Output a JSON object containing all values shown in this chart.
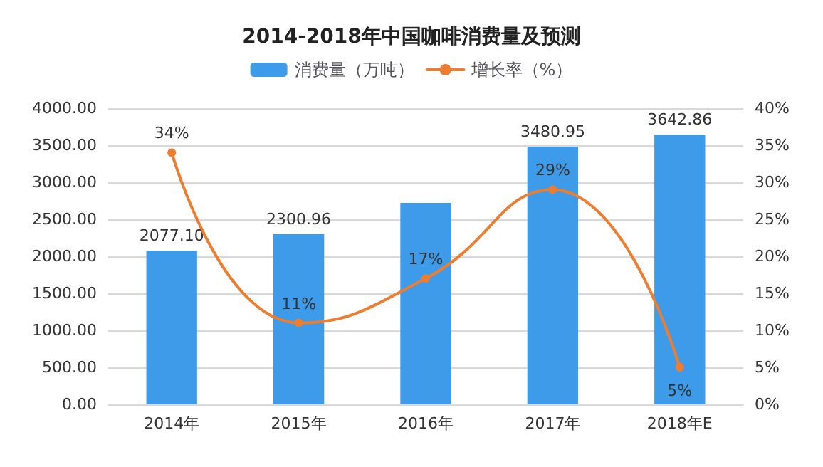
{
  "chart_data": {
    "type": "bar",
    "title": "2014-2018年中国咖啡消费量及预测",
    "categories": [
      "2014年",
      "2015年",
      "2016年",
      "2017年",
      "2018年E"
    ],
    "series": [
      {
        "name": "消费量（万吨）",
        "color": "#3d9be9",
        "values": [
          2077.1,
          2300.96,
          2720,
          3480.95,
          3642.86
        ],
        "value_labels": [
          "2077.10",
          "2300.96",
          null,
          "3480.95",
          "3642.86"
        ]
      },
      {
        "name": "增长率（%）",
        "type": "line",
        "axis": "y2",
        "color": "#ed7d31",
        "values": [
          34,
          11,
          17,
          29,
          5
        ],
        "value_labels": [
          "34%",
          "11%",
          "17%",
          "29%",
          "5%"
        ]
      }
    ],
    "ylim": [
      0,
      4000
    ],
    "yticks": [
      {
        "value": 0,
        "label": "0.00"
      },
      {
        "value": 500,
        "label": "500.00"
      },
      {
        "value": 1000,
        "label": "1000.00"
      },
      {
        "value": 1500,
        "label": "1500.00"
      },
      {
        "value": 2000,
        "label": "2000.00"
      },
      {
        "value": 2500,
        "label": "2500.00"
      },
      {
        "value": 3000,
        "label": "3000.00"
      },
      {
        "value": 3500,
        "label": "3500.00"
      },
      {
        "value": 4000,
        "label": "4000.00"
      }
    ],
    "y2lim": [
      0,
      40
    ],
    "y2ticks": [
      {
        "value": 0,
        "label": "0%"
      },
      {
        "value": 5,
        "label": "5%"
      },
      {
        "value": 10,
        "label": "10%"
      },
      {
        "value": 15,
        "label": "15%"
      },
      {
        "value": 20,
        "label": "20%"
      },
      {
        "value": 25,
        "label": "25%"
      },
      {
        "value": 30,
        "label": "30%"
      },
      {
        "value": 35,
        "label": "35%"
      },
      {
        "value": 40,
        "label": "40%"
      }
    ],
    "grid": "y",
    "legend": "top",
    "marker": "circle"
  }
}
